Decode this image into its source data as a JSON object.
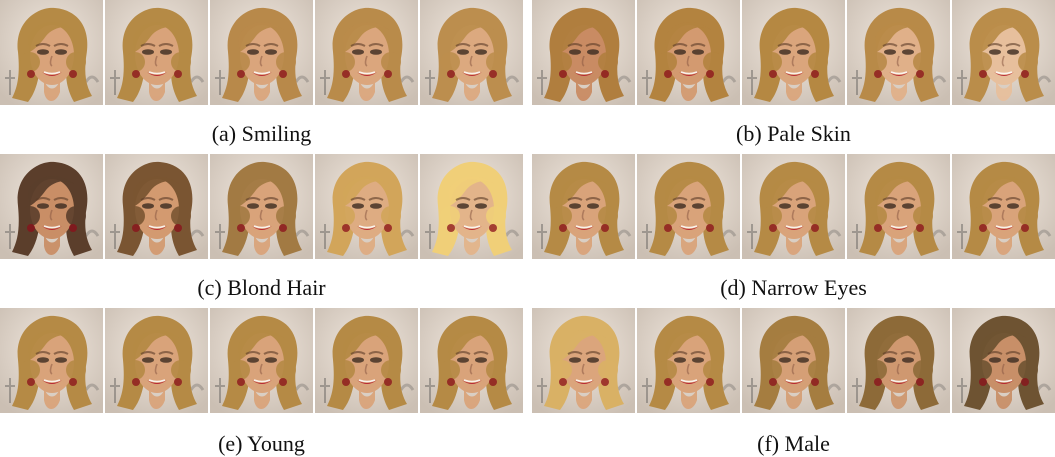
{
  "figure": {
    "panels": [
      {
        "caption": "(a) Smiling",
        "images": [
          {
            "alt": "face",
            "hair": "#b58a45",
            "skin": "#d9a37a",
            "tint": 0.0
          },
          {
            "alt": "face",
            "hair": "#b58a45",
            "skin": "#d9a37a",
            "tint": 0.0
          },
          {
            "alt": "face",
            "hair": "#b8894a",
            "skin": "#daa57c",
            "tint": 0.0
          },
          {
            "alt": "face",
            "hair": "#b98b4a",
            "skin": "#dba67d",
            "tint": 0.0
          },
          {
            "alt": "face",
            "hair": "#bc8e4e",
            "skin": "#dca97f",
            "tint": 0.0
          }
        ]
      },
      {
        "caption": "(b) Pale Skin",
        "images": [
          {
            "alt": "face",
            "hair": "#b07e3e",
            "skin": "#c98b63",
            "tint": 0.0
          },
          {
            "alt": "face",
            "hair": "#b3833f",
            "skin": "#d39a70",
            "tint": 0.0
          },
          {
            "alt": "face",
            "hair": "#b58842",
            "skin": "#daa57c",
            "tint": 0.0
          },
          {
            "alt": "face",
            "hair": "#b88a48",
            "skin": "#e0b089",
            "tint": 0.0
          },
          {
            "alt": "face",
            "hair": "#ba8d4a",
            "skin": "#e7bf9c",
            "tint": 0.0
          }
        ]
      },
      {
        "caption": "(c) Blond Hair",
        "images": [
          {
            "alt": "face",
            "hair": "#5b3e2b",
            "skin": "#c98e66",
            "tint": 0.0
          },
          {
            "alt": "face",
            "hair": "#7a5532",
            "skin": "#d39a70",
            "tint": 0.0
          },
          {
            "alt": "face",
            "hair": "#a27a43",
            "skin": "#d9a37a",
            "tint": 0.0
          },
          {
            "alt": "face",
            "hair": "#d2a55a",
            "skin": "#deac82",
            "tint": 0.0
          },
          {
            "alt": "face",
            "hair": "#f0cf78",
            "skin": "#e3b48a",
            "tint": 0.0
          }
        ]
      },
      {
        "caption": "(d) Narrow Eyes",
        "images": [
          {
            "alt": "face",
            "hair": "#b58a45",
            "skin": "#d9a37a",
            "tint": 0.0
          },
          {
            "alt": "face",
            "hair": "#b58a45",
            "skin": "#d9a37a",
            "tint": 0.0
          },
          {
            "alt": "face",
            "hair": "#b58a45",
            "skin": "#d9a37a",
            "tint": 0.0
          },
          {
            "alt": "face",
            "hair": "#b58a45",
            "skin": "#d9a37a",
            "tint": 0.0
          },
          {
            "alt": "face",
            "hair": "#b58a45",
            "skin": "#d9a37a",
            "tint": 0.0
          }
        ]
      },
      {
        "caption": "(e) Young",
        "images": [
          {
            "alt": "face",
            "hair": "#b58a45",
            "skin": "#d9a37a",
            "tint": 0.0
          },
          {
            "alt": "face",
            "hair": "#b58a45",
            "skin": "#d9a37a",
            "tint": 0.0
          },
          {
            "alt": "face",
            "hair": "#b58a45",
            "skin": "#d9a37a",
            "tint": 0.0
          },
          {
            "alt": "face",
            "hair": "#b58a45",
            "skin": "#d9a37a",
            "tint": 0.0
          },
          {
            "alt": "face",
            "hair": "#b58a45",
            "skin": "#d9a37a",
            "tint": 0.0
          }
        ]
      },
      {
        "caption": "(f) Male",
        "images": [
          {
            "alt": "face",
            "hair": "#d9b165",
            "skin": "#dba57c",
            "tint": 0.0
          },
          {
            "alt": "face",
            "hair": "#b58a45",
            "skin": "#d9a37a",
            "tint": 0.0
          },
          {
            "alt": "face",
            "hair": "#a57d40",
            "skin": "#d59f76",
            "tint": 0.0
          },
          {
            "alt": "face",
            "hair": "#8d6a38",
            "skin": "#cf9870",
            "tint": 0.0
          },
          {
            "alt": "face",
            "hair": "#6e5332",
            "skin": "#c88f68",
            "tint": 0.0
          }
        ]
      }
    ]
  }
}
